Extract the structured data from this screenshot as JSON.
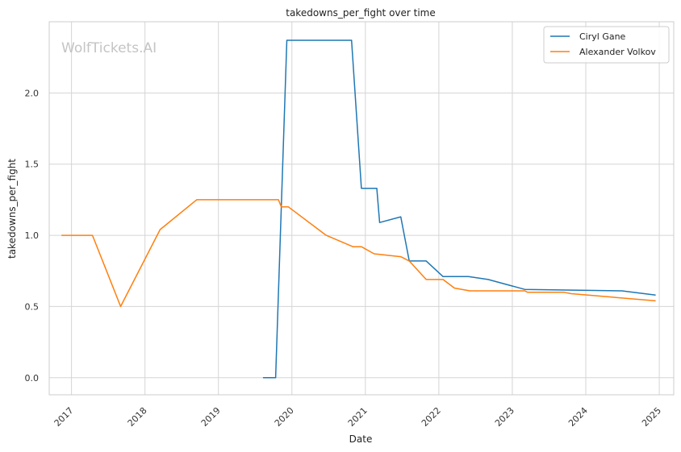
{
  "watermark": "WolfTickets.AI",
  "chart_data": {
    "type": "line",
    "title": "takedowns_per_fight over time",
    "xlabel": "Date",
    "ylabel": "takedowns_per_fight",
    "x_ticks": [
      "2017",
      "2018",
      "2019",
      "2020",
      "2021",
      "2022",
      "2023",
      "2024",
      "2025"
    ],
    "y_ticks": [
      "0.0",
      "0.5",
      "1.0",
      "1.5",
      "2.0"
    ],
    "xlim": [
      "2016-09-12",
      "2025-03-14"
    ],
    "ylim": [
      -0.12,
      2.5
    ],
    "grid": true,
    "legend_position": "top-right",
    "series": [
      {
        "name": "Ciryl Gane",
        "color": "#1f77b4",
        "points": [
          [
            "2019-08-10",
            0.0
          ],
          [
            "2019-10-12",
            0.0
          ],
          [
            "2019-12-07",
            2.37
          ],
          [
            "2020-10-24",
            2.37
          ],
          [
            "2020-12-12",
            1.33
          ],
          [
            "2021-02-27",
            1.33
          ],
          [
            "2021-03-13",
            1.09
          ],
          [
            "2021-06-26",
            1.13
          ],
          [
            "2021-08-07",
            0.82
          ],
          [
            "2021-10-30",
            0.82
          ],
          [
            "2022-01-22",
            0.71
          ],
          [
            "2022-05-28",
            0.71
          ],
          [
            "2022-09-03",
            0.69
          ],
          [
            "2023-03-04",
            0.62
          ],
          [
            "2024-06-29",
            0.61
          ],
          [
            "2024-12-14",
            0.58
          ]
        ]
      },
      {
        "name": "Alexander Volkov",
        "color": "#ff7f0e",
        "points": [
          [
            "2016-11-12",
            1.0
          ],
          [
            "2017-04-15",
            1.0
          ],
          [
            "2017-09-02",
            0.5
          ],
          [
            "2018-03-17",
            1.04
          ],
          [
            "2018-09-15",
            1.25
          ],
          [
            "2019-10-26",
            1.25
          ],
          [
            "2019-11-09",
            1.2
          ],
          [
            "2019-12-14",
            1.2
          ],
          [
            "2020-06-20",
            1.0
          ],
          [
            "2020-10-31",
            0.92
          ],
          [
            "2020-12-12",
            0.92
          ],
          [
            "2021-02-13",
            0.87
          ],
          [
            "2021-06-26",
            0.85
          ],
          [
            "2021-08-07",
            0.82
          ],
          [
            "2021-10-30",
            0.69
          ],
          [
            "2022-01-22",
            0.69
          ],
          [
            "2022-03-19",
            0.63
          ],
          [
            "2022-06-04",
            0.61
          ],
          [
            "2023-03-04",
            0.61
          ],
          [
            "2023-03-18",
            0.6
          ],
          [
            "2023-09-16",
            0.6
          ],
          [
            "2023-10-21",
            0.59
          ],
          [
            "2024-12-14",
            0.54
          ]
        ]
      }
    ]
  }
}
